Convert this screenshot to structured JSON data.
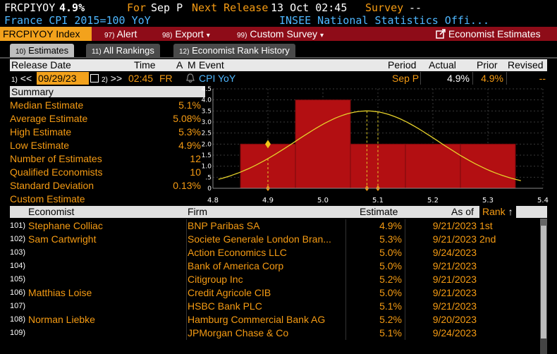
{
  "header": {
    "ticker": "FRCPIYOY",
    "value": "4.9%",
    "for_label": "For",
    "period": "Sep P",
    "next_release_label": "Next Release",
    "next_release": "13 Oct 02:45",
    "survey_label": "Survey",
    "survey_value": "--",
    "subtitle": "France CPI 2015=100 YoY",
    "source": "INSEE National Statistics Offi..."
  },
  "menu": {
    "security": "FRCPIYOY Index",
    "alert_num": "97)",
    "alert": "Alert",
    "export_num": "98)",
    "export": "Export",
    "export_caret": "▾",
    "custom_num": "99)",
    "custom": "Custom Survey",
    "custom_caret": "▾",
    "economist": "Economist Estimates"
  },
  "tabs": [
    {
      "num": "10)",
      "label": "Estimates"
    },
    {
      "num": "11)",
      "label": "All Rankings"
    },
    {
      "num": "12)",
      "label": "Economist Rank History"
    }
  ],
  "release_table": {
    "headers": {
      "release_date": "Release Date",
      "time": "Time",
      "a": "A",
      "m": "M",
      "event": "Event",
      "period": "Period",
      "actual": "Actual",
      "prior": "Prior",
      "revised": "Revised"
    },
    "prev_num": "1)",
    "prev": "<<",
    "date": "09/29/23",
    "next_num": "2)",
    "next": ">>",
    "time": "02:45",
    "country": "FR",
    "event": "CPI YoY",
    "period": "Sep P",
    "actual": "4.9%",
    "prior": "4.9%",
    "revised": "--"
  },
  "summary": {
    "title": "Summary",
    "rows": [
      {
        "label": "Median Estimate",
        "value": "5.1%"
      },
      {
        "label": "Average Estimate",
        "value": "5.08%"
      },
      {
        "label": "High Estimate",
        "value": "5.3%"
      },
      {
        "label": "Low Estimate",
        "value": "4.9%"
      },
      {
        "label": "Number of Estimates",
        "value": "12"
      },
      {
        "label": "Qualified Economists",
        "value": "10"
      },
      {
        "label": "Standard Deviation",
        "value": "0.13%"
      },
      {
        "label": "Custom Estimate",
        "value": ""
      }
    ]
  },
  "chart_data": {
    "type": "bar",
    "bars": [
      {
        "x0": 4.85,
        "x1": 4.95,
        "y": 2.0
      },
      {
        "x0": 4.95,
        "x1": 5.05,
        "y": 4.0
      },
      {
        "x0": 5.05,
        "x1": 5.15,
        "y": 2.0
      },
      {
        "x0": 5.15,
        "x1": 5.25,
        "y": 2.0
      },
      {
        "x0": 5.25,
        "x1": 5.35,
        "y": 2.0
      }
    ],
    "xlim": [
      4.8,
      5.4
    ],
    "ylim": [
      0,
      4.5
    ],
    "xticks": [
      "4.8",
      "4.9",
      "5.0",
      "5.1",
      "5.2",
      "5.3",
      "5.4"
    ],
    "yticks": [
      "0",
      ".5",
      "1.0",
      "1.5",
      "2.0",
      "2.5",
      "3.0",
      "3.5",
      "4.0",
      "4.5"
    ],
    "curve": {
      "mean": 5.08,
      "sd": 0.13,
      "peak": 3.5
    },
    "markers": [
      {
        "x": 4.9,
        "label": "actual"
      },
      {
        "x": 5.08,
        "label": "average"
      },
      {
        "x": 5.1,
        "label": "median"
      }
    ],
    "colors": {
      "bar": "#b30f12",
      "curve": "#e6d12a",
      "marker": "#f59b13"
    }
  },
  "estimates_table": {
    "headers": {
      "economist": "Economist",
      "firm": "Firm",
      "estimate": "Estimate",
      "as_of": "As of",
      "rank": "Rank",
      "sort": "↑"
    },
    "rows": [
      {
        "num": "101)",
        "economist": "Stephane Colliac",
        "firm": "BNP Paribas SA",
        "estimate": "4.9%",
        "as_of": "9/21/2023",
        "rank": "1st"
      },
      {
        "num": "102)",
        "economist": "Sam Cartwright",
        "firm": "Societe Generale London Bran...",
        "estimate": "5.3%",
        "as_of": "9/21/2023",
        "rank": "2nd"
      },
      {
        "num": "103)",
        "economist": "",
        "firm": "Action Economics LLC",
        "estimate": "5.0%",
        "as_of": "9/24/2023",
        "rank": ""
      },
      {
        "num": "104)",
        "economist": "",
        "firm": "Bank of America Corp",
        "estimate": "5.0%",
        "as_of": "9/21/2023",
        "rank": ""
      },
      {
        "num": "105)",
        "economist": "",
        "firm": "Citigroup Inc",
        "estimate": "5.2%",
        "as_of": "9/21/2023",
        "rank": ""
      },
      {
        "num": "106)",
        "economist": "Matthias Loise",
        "firm": "Credit Agricole CIB",
        "estimate": "5.0%",
        "as_of": "9/21/2023",
        "rank": ""
      },
      {
        "num": "107)",
        "economist": "",
        "firm": "HSBC Bank PLC",
        "estimate": "5.1%",
        "as_of": "9/21/2023",
        "rank": ""
      },
      {
        "num": "108)",
        "economist": "Norman Liebke",
        "firm": "Hamburg Commercial Bank AG",
        "estimate": "5.2%",
        "as_of": "9/20/2023",
        "rank": ""
      },
      {
        "num": "109)",
        "economist": "",
        "firm": "JPMorgan Chase & Co",
        "estimate": "5.1%",
        "as_of": "9/24/2023",
        "rank": ""
      }
    ]
  }
}
